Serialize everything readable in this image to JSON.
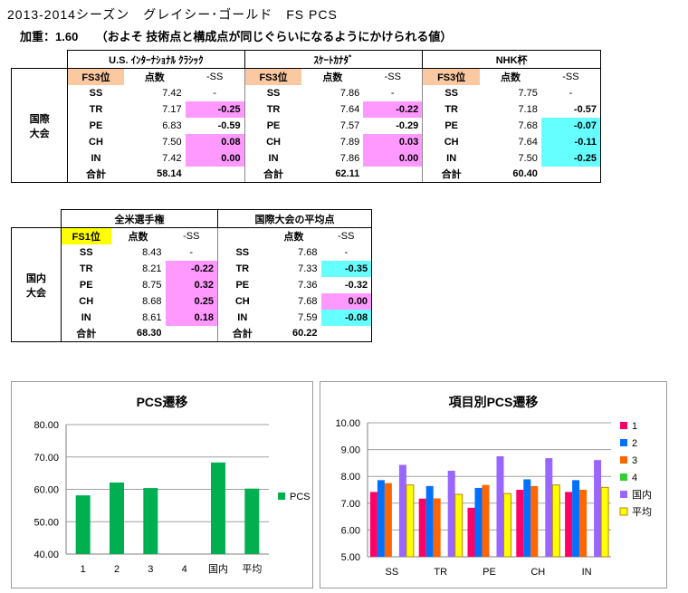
{
  "header": {
    "title": "2013-2014シーズン　グレイシー･ゴールド　FS PCS",
    "subtitle": "加重：1.60　　（およそ 技術点と構成点が同じぐらいになるようにかけられる値）"
  },
  "international": {
    "group_label": "国際\n大会",
    "col_score": "点数",
    "col_diff": "-SS",
    "total_label": "合計",
    "events": [
      {
        "name": "U.S. ｲﾝﾀｰﾅｼｮﾅﾙ ｸﾗｼｯｸ",
        "place": "FS3位",
        "rows": [
          {
            "item": "SS",
            "score": "7.42",
            "diff": "-",
            "hl": ""
          },
          {
            "item": "TR",
            "score": "7.17",
            "diff": "-0.25",
            "hl": "pink"
          },
          {
            "item": "PE",
            "score": "6.83",
            "diff": "-0.59",
            "hl": ""
          },
          {
            "item": "CH",
            "score": "7.50",
            "diff": "0.08",
            "hl": "pink"
          },
          {
            "item": "IN",
            "score": "7.42",
            "diff": "0.00",
            "hl": "pink"
          }
        ],
        "total": "58.14"
      },
      {
        "name": "ｽｹｰﾄｶﾅﾀﾞ",
        "place": "FS3位",
        "rows": [
          {
            "item": "SS",
            "score": "7.86",
            "diff": "-",
            "hl": ""
          },
          {
            "item": "TR",
            "score": "7.64",
            "diff": "-0.22",
            "hl": "pink"
          },
          {
            "item": "PE",
            "score": "7.57",
            "diff": "-0.29",
            "hl": ""
          },
          {
            "item": "CH",
            "score": "7.89",
            "diff": "0.03",
            "hl": "pink"
          },
          {
            "item": "IN",
            "score": "7.86",
            "diff": "0.00",
            "hl": "pink"
          }
        ],
        "total": "62.11"
      },
      {
        "name": "NHK杯",
        "place": "FS3位",
        "rows": [
          {
            "item": "SS",
            "score": "7.75",
            "diff": "-",
            "hl": ""
          },
          {
            "item": "TR",
            "score": "7.18",
            "diff": "-0.57",
            "hl": ""
          },
          {
            "item": "PE",
            "score": "7.68",
            "diff": "-0.07",
            "hl": "cyan"
          },
          {
            "item": "CH",
            "score": "7.64",
            "diff": "-0.11",
            "hl": "cyan"
          },
          {
            "item": "IN",
            "score": "7.50",
            "diff": "-0.25",
            "hl": "cyan"
          }
        ],
        "total": "60.40"
      }
    ]
  },
  "domestic": {
    "group_label": "国内\n大会",
    "col_score": "点数",
    "col_diff": "-SS",
    "total_label": "合計",
    "events": [
      {
        "name": "全米選手権",
        "place": "FS1位",
        "rows": [
          {
            "item": "SS",
            "score": "8.43",
            "diff": "-",
            "hl": ""
          },
          {
            "item": "TR",
            "score": "8.21",
            "diff": "-0.22",
            "hl": "pink"
          },
          {
            "item": "PE",
            "score": "8.75",
            "diff": "0.32",
            "hl": "pink"
          },
          {
            "item": "CH",
            "score": "8.68",
            "diff": "0.25",
            "hl": "pink"
          },
          {
            "item": "IN",
            "score": "8.61",
            "diff": "0.18",
            "hl": "pink"
          }
        ],
        "total": "68.30"
      },
      {
        "name": "国際大会の平均点",
        "place": "",
        "rows": [
          {
            "item": "SS",
            "score": "7.68",
            "diff": "-",
            "hl": ""
          },
          {
            "item": "TR",
            "score": "7.33",
            "diff": "-0.35",
            "hl": "cyan"
          },
          {
            "item": "PE",
            "score": "7.36",
            "diff": "-0.32",
            "hl": ""
          },
          {
            "item": "CH",
            "score": "7.68",
            "diff": "0.00",
            "hl": "pink"
          },
          {
            "item": "IN",
            "score": "7.59",
            "diff": "-0.08",
            "hl": "cyan"
          }
        ],
        "total": "60.22"
      }
    ]
  },
  "chart_data": [
    {
      "type": "bar",
      "title": "PCS遷移",
      "categories": [
        "1",
        "2",
        "3",
        "4",
        "国内",
        "平均"
      ],
      "series": [
        {
          "name": "PCS",
          "color": "#00B050",
          "values": [
            58.14,
            62.11,
            60.4,
            null,
            68.3,
            60.22
          ]
        }
      ],
      "ylim": [
        40,
        80
      ],
      "yticks": [
        "40.00",
        "50.00",
        "60.00",
        "70.00",
        "80.00"
      ],
      "grid": true,
      "legend": "right",
      "xlabel": "",
      "ylabel": ""
    },
    {
      "type": "bar",
      "title": "項目別PCS遷移",
      "categories": [
        "SS",
        "TR",
        "PE",
        "CH",
        "IN"
      ],
      "series": [
        {
          "name": "1",
          "color": "#FF0066",
          "values": [
            7.42,
            7.17,
            6.83,
            7.5,
            7.42
          ]
        },
        {
          "name": "2",
          "color": "#0070FF",
          "values": [
            7.86,
            7.64,
            7.57,
            7.89,
            7.86
          ]
        },
        {
          "name": "3",
          "color": "#FF6600",
          "values": [
            7.75,
            7.18,
            7.68,
            7.64,
            7.5
          ]
        },
        {
          "name": "4",
          "color": "#33CC33",
          "values": [
            null,
            null,
            null,
            null,
            null
          ]
        },
        {
          "name": "国内",
          "color": "#9966FF",
          "values": [
            8.43,
            8.21,
            8.75,
            8.68,
            8.61
          ]
        },
        {
          "name": "平均",
          "color": "#FFFF00",
          "stroke": "#B8860B",
          "values": [
            7.68,
            7.33,
            7.36,
            7.68,
            7.59
          ]
        }
      ],
      "ylim": [
        5,
        10
      ],
      "yticks": [
        "5.00",
        "6.00",
        "7.00",
        "8.00",
        "9.00",
        "10.00"
      ],
      "grid": true,
      "legend": "right",
      "xlabel": "",
      "ylabel": ""
    }
  ]
}
